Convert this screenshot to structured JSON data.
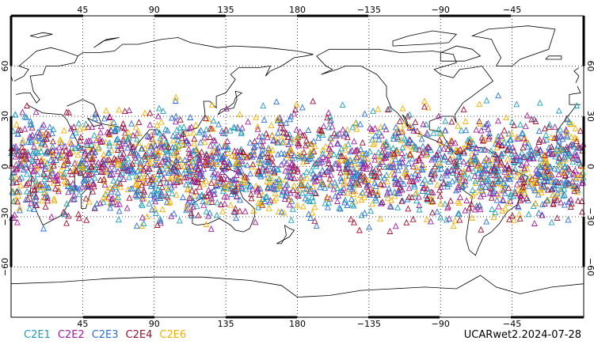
{
  "map": {
    "projection": "equirectangular",
    "lon_center": 180,
    "lat_range": [
      -90,
      90
    ],
    "gridlines": true,
    "top_ticks": [
      "45",
      "90",
      "135",
      "180",
      "−135",
      "−90",
      "−45"
    ],
    "bottom_ticks": [
      "45",
      "90",
      "135",
      "180",
      "−135",
      "−90",
      "−45"
    ],
    "left_ticks": [
      "60",
      "30",
      "0",
      "−30",
      "−60"
    ],
    "right_ticks": [
      "60",
      "30",
      "0",
      "−30",
      "−60"
    ],
    "marker": "triangle-outline",
    "occultation_lat_band": [
      -45,
      45
    ]
  },
  "legend": [
    {
      "label": "C2E1",
      "color": "#1a9fb8"
    },
    {
      "label": "C2E2",
      "color": "#a020a0"
    },
    {
      "label": "C2E3",
      "color": "#2a6fd8"
    },
    {
      "label": "C2E4",
      "color": "#a01030"
    },
    {
      "label": "C2E6",
      "color": "#f0b000"
    }
  ],
  "stamp": "UCARwet2.2024-07-28"
}
